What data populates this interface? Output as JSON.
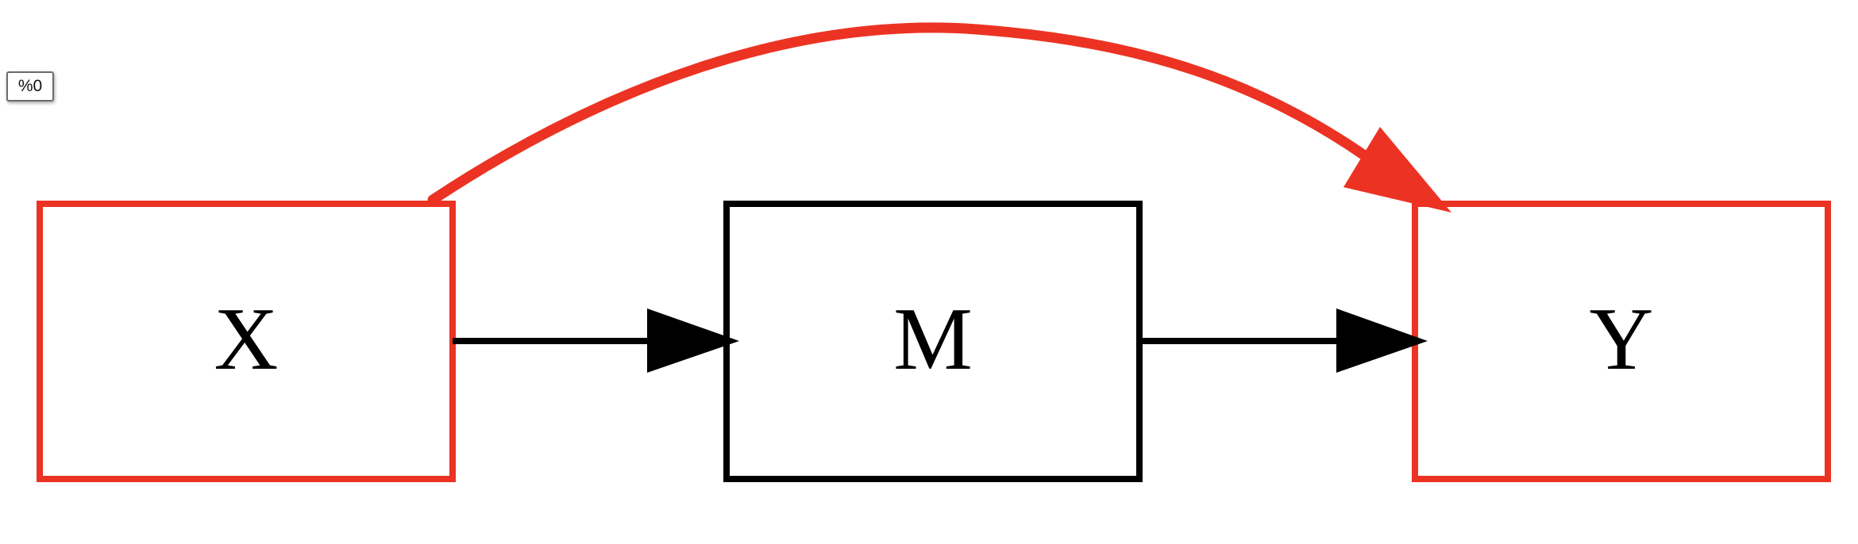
{
  "graph": {
    "tag": "%0"
  },
  "colors": {
    "highlight": "#ec3323",
    "default": "#000000"
  },
  "nodes": [
    {
      "id": "X",
      "label": "X",
      "color": "#ec3323"
    },
    {
      "id": "M",
      "label": "M",
      "color": "#000000"
    },
    {
      "id": "Y",
      "label": "Y",
      "color": "#ec3323"
    }
  ],
  "edges": [
    {
      "from": "X",
      "to": "M",
      "color": "#000000"
    },
    {
      "from": "M",
      "to": "Y",
      "color": "#000000"
    },
    {
      "from": "X",
      "to": "Y",
      "color": "#ec3323"
    }
  ]
}
